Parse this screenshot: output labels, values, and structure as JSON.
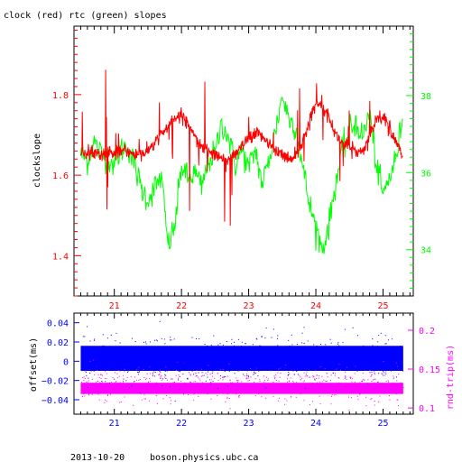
{
  "chart_data": [
    {
      "type": "line",
      "title": "clock (red) rtc (green) slopes",
      "xlabel": "",
      "ylabel": "clockslope",
      "xlim": [
        20.4,
        25.45
      ],
      "x_ticks": [
        "21",
        "22",
        "23",
        "24",
        "25"
      ],
      "ylim_left": [
        1.3,
        1.97
      ],
      "y_ticks_left": [
        "1.4",
        "1.6",
        "1.8"
      ],
      "ylim_right": [
        32.8,
        39.8
      ],
      "y_ticks_right": [
        "34",
        "36",
        "38"
      ],
      "grid": false,
      "series": [
        {
          "name": "clock",
          "color": "#ff0000",
          "axis": "left",
          "x": [
            20.5,
            20.6,
            20.7,
            20.8,
            20.9,
            21.0,
            21.1,
            21.2,
            21.3,
            21.4,
            21.5,
            21.6,
            21.7,
            21.8,
            21.9,
            22.0,
            22.1,
            22.2,
            22.3,
            22.4,
            22.5,
            22.6,
            22.7,
            22.8,
            22.9,
            23.0,
            23.1,
            23.2,
            23.3,
            23.4,
            23.5,
            23.6,
            23.7,
            23.8,
            23.9,
            24.0,
            24.1,
            24.2,
            24.3,
            24.4,
            24.5,
            24.6,
            24.7,
            24.8,
            24.9,
            25.0,
            25.1,
            25.2,
            25.3
          ],
          "y": [
            1.66,
            1.65,
            1.66,
            1.65,
            1.66,
            1.65,
            1.66,
            1.66,
            1.65,
            1.65,
            1.66,
            1.68,
            1.7,
            1.72,
            1.74,
            1.75,
            1.73,
            1.7,
            1.67,
            1.66,
            1.65,
            1.64,
            1.64,
            1.65,
            1.67,
            1.69,
            1.7,
            1.7,
            1.68,
            1.66,
            1.65,
            1.64,
            1.65,
            1.68,
            1.73,
            1.78,
            1.78,
            1.74,
            1.7,
            1.68,
            1.67,
            1.66,
            1.66,
            1.7,
            1.74,
            1.75,
            1.72,
            1.68,
            1.64
          ]
        },
        {
          "name": "rtc",
          "color": "#00ff00",
          "axis": "right",
          "x": [
            20.5,
            20.6,
            20.7,
            20.8,
            20.9,
            21.0,
            21.1,
            21.2,
            21.3,
            21.4,
            21.5,
            21.6,
            21.7,
            21.8,
            21.9,
            22.0,
            22.1,
            22.2,
            22.3,
            22.4,
            22.5,
            22.6,
            22.7,
            22.8,
            22.9,
            23.0,
            23.1,
            23.2,
            23.3,
            23.4,
            23.5,
            23.6,
            23.7,
            23.8,
            23.9,
            24.0,
            24.1,
            24.2,
            24.3,
            24.4,
            24.5,
            24.6,
            24.7,
            24.8,
            24.9,
            25.0,
            25.1,
            25.2,
            25.3
          ],
          "y": [
            36.5,
            36.3,
            36.8,
            36.5,
            36.4,
            36.2,
            36.6,
            36.7,
            36.2,
            35.6,
            35.3,
            35.6,
            35.9,
            34.1,
            34.6,
            36.2,
            35.8,
            36.0,
            35.6,
            36.3,
            36.5,
            37.3,
            36.9,
            36.2,
            36.6,
            36.1,
            36.6,
            35.7,
            36.3,
            37.1,
            38.0,
            37.4,
            37.2,
            36.2,
            35.2,
            34.6,
            34.0,
            34.7,
            35.8,
            36.6,
            37.1,
            37.3,
            36.9,
            37.6,
            36.2,
            35.4,
            35.9,
            36.4,
            37.6
          ]
        }
      ]
    },
    {
      "type": "scatter",
      "title": "",
      "xlabel": "",
      "ylabel": "offset(ms)",
      "ylabel_right": "rnd-trip(ms)",
      "xlim": [
        20.4,
        25.45
      ],
      "x_ticks": [
        "21",
        "22",
        "23",
        "24",
        "25"
      ],
      "ylim_left": [
        -0.055,
        0.05
      ],
      "y_ticks_left": [
        "0.04",
        "0.02",
        "0",
        "−0.02",
        "−0.04"
      ],
      "ylim_right": [
        0.092,
        0.222
      ],
      "y_ticks_right": [
        "0.2",
        "0.15",
        "0.1"
      ],
      "series": [
        {
          "name": "offset",
          "color": "#0000ff",
          "axis": "left",
          "band_center": 0.003,
          "band_halfwidth": 0.013
        },
        {
          "name": "rnd-trip",
          "color": "#ff00ff",
          "axis": "right",
          "band_center": 0.13,
          "band_halfwidth": 0.012
        }
      ]
    }
  ],
  "footer": {
    "date": "2013-10-20",
    "host": "boson.physics.ubc.ca"
  }
}
